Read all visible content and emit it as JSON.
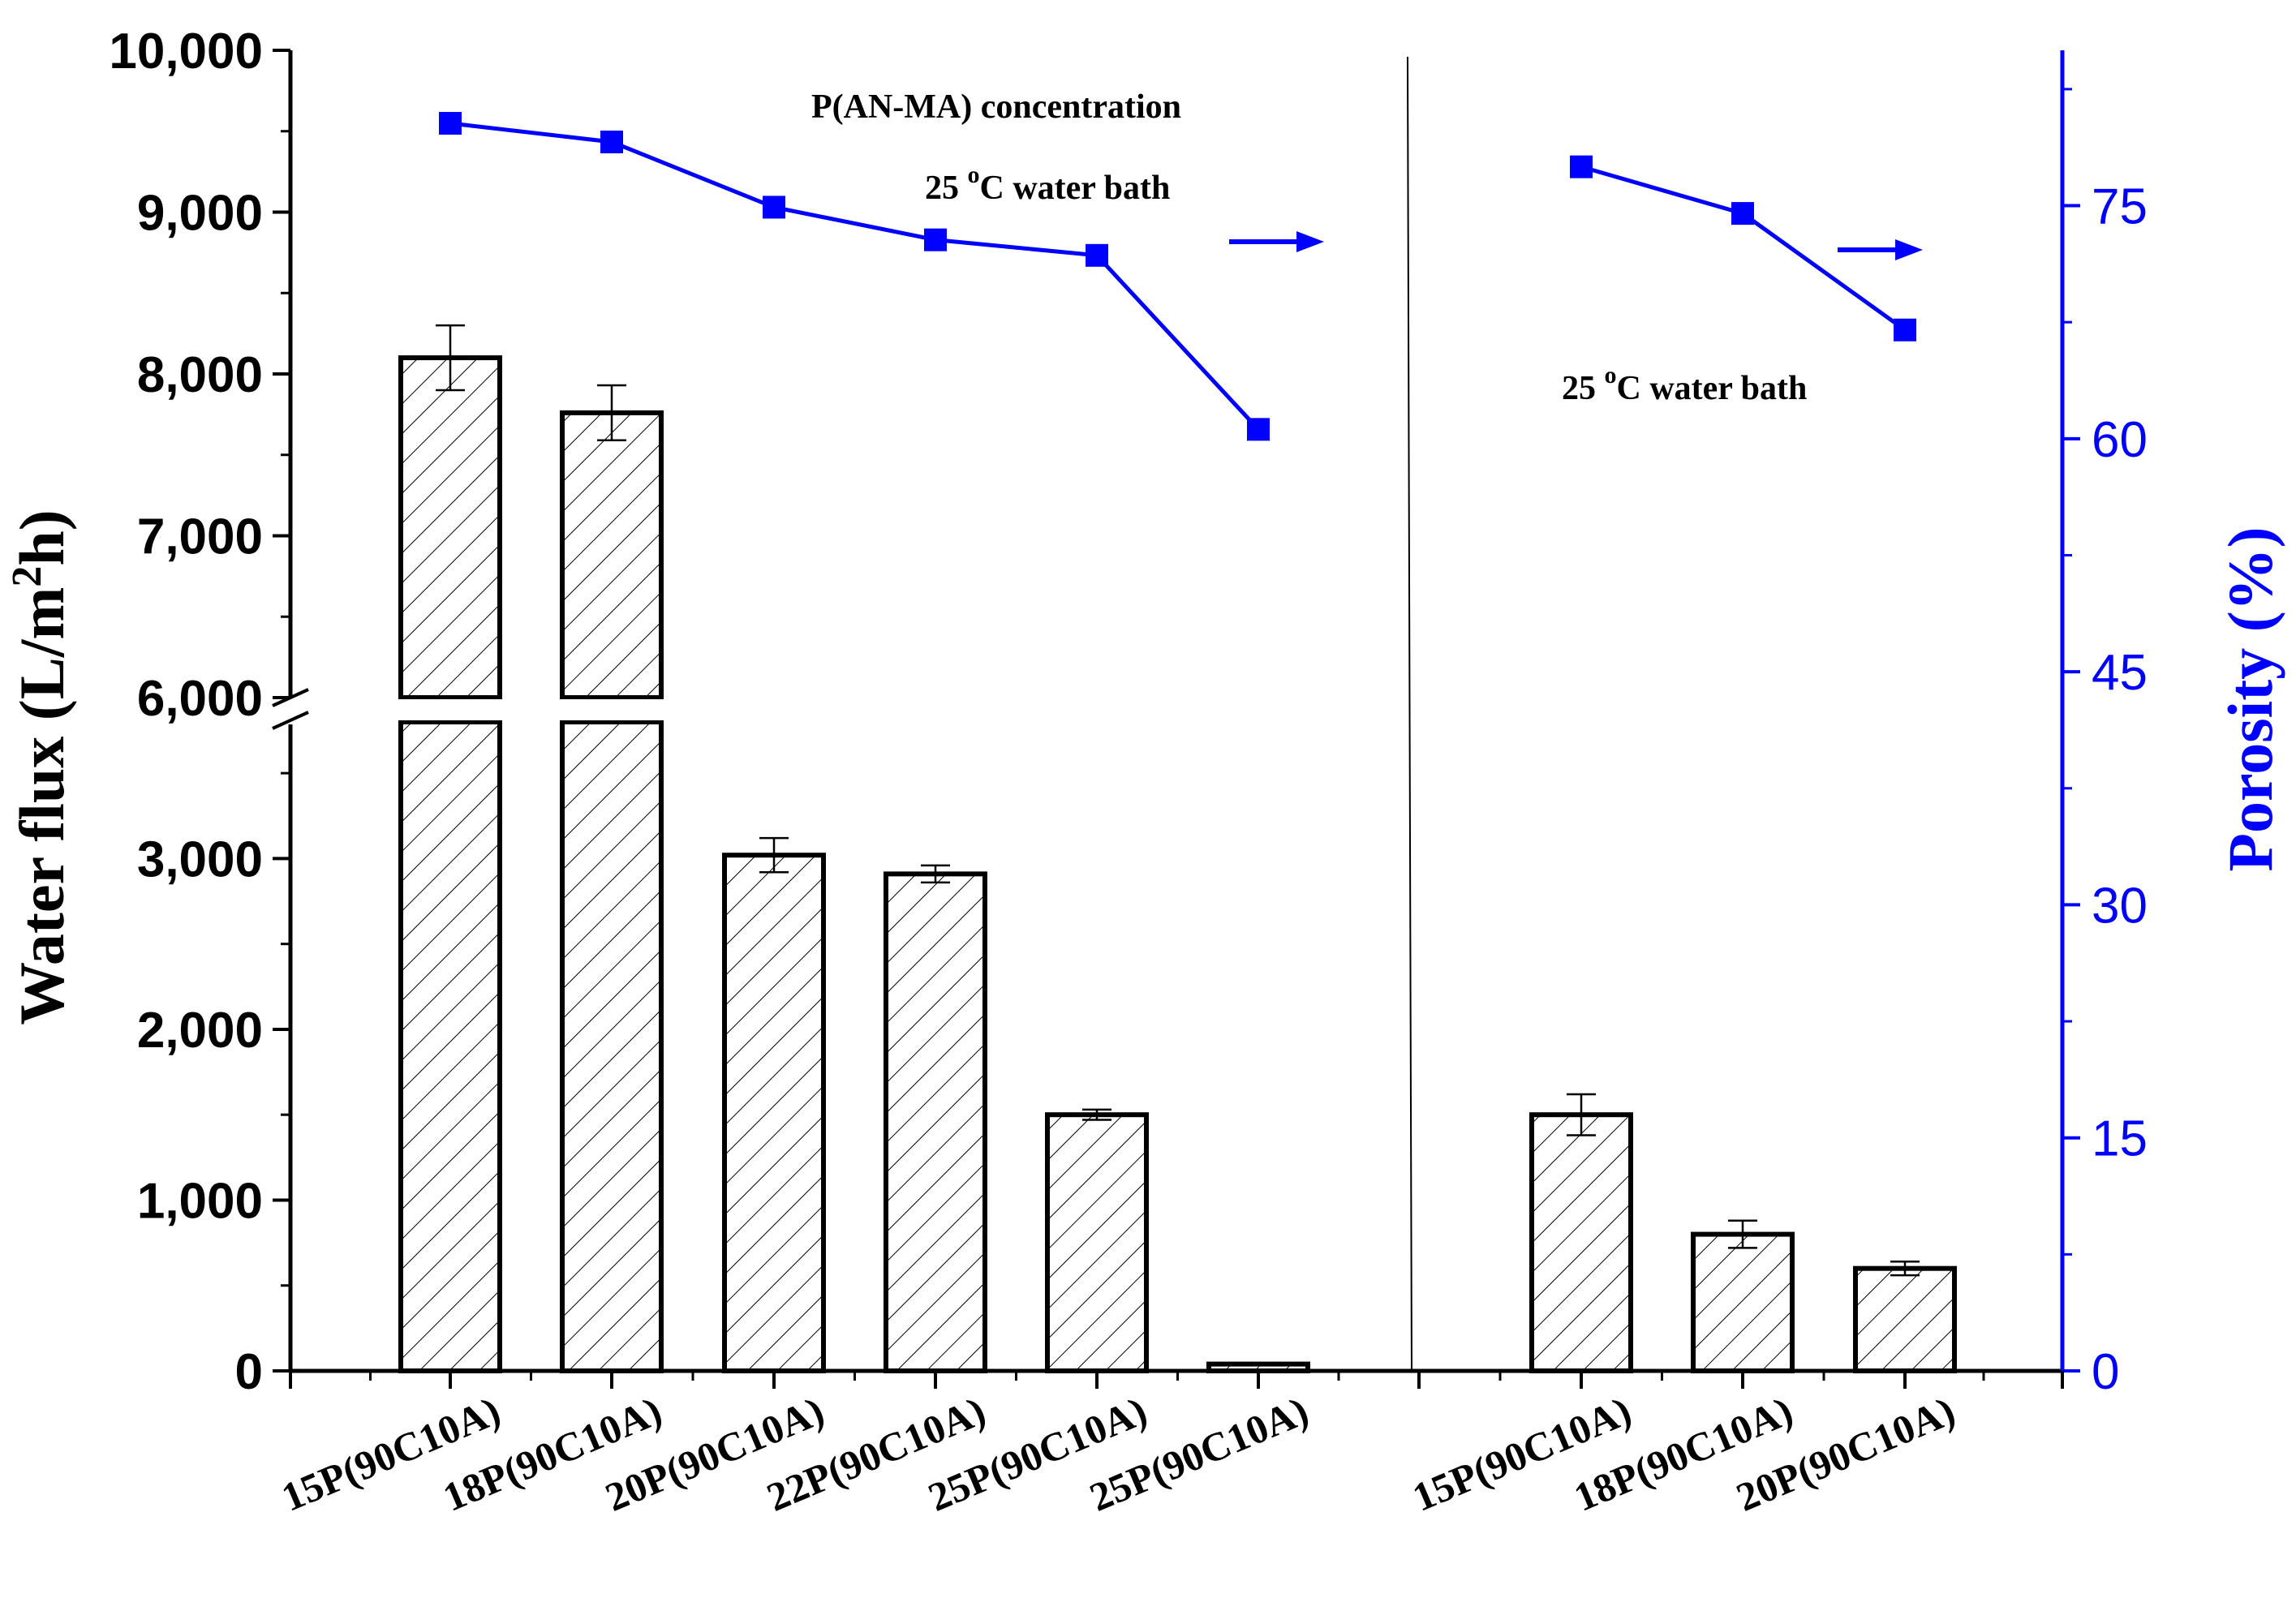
{
  "chart_data": {
    "type": "bar",
    "title": "",
    "xlabel": "",
    "categories": [
      "15P(90C10A)",
      "18P(90C10A)",
      "20P(90C10A)",
      "22P(90C10A)",
      "25P(90C10A)",
      "25P(90C10A)",
      "15P(90C10A)",
      "18P(90C10A)",
      "20P(90C10A)"
    ],
    "groups": [
      {
        "name": "P(AN-MA) concentration, 25 °C water bath",
        "category_indices": [
          0,
          1,
          2,
          3,
          4,
          5
        ]
      },
      {
        "name": "25 °C water bath",
        "category_indices": [
          6,
          7,
          8
        ]
      }
    ],
    "left_axis": {
      "label_main": "Water flux (L/m",
      "label_sup": "2",
      "label_end": "h)",
      "lower_range": [
        0,
        3800
      ],
      "upper_range": [
        6000,
        10000
      ],
      "ticks": [
        {
          "value": 0,
          "label": "0"
        },
        {
          "value": 1000,
          "label": "1,000"
        },
        {
          "value": 2000,
          "label": "2,000"
        },
        {
          "value": 3000,
          "label": "3,000"
        },
        {
          "value": 6000,
          "label": "6,000"
        },
        {
          "value": 7000,
          "label": "7,000"
        },
        {
          "value": 8000,
          "label": "8,000"
        },
        {
          "value": 9000,
          "label": "9,000"
        },
        {
          "value": 10000,
          "label": "10,000"
        }
      ]
    },
    "right_axis": {
      "label": "Porosity (%)",
      "range": [
        0,
        85
      ],
      "ticks": [
        {
          "value": 0,
          "label": "0"
        },
        {
          "value": 15,
          "label": "15"
        },
        {
          "value": 30,
          "label": "30"
        },
        {
          "value": 45,
          "label": "45"
        },
        {
          "value": 60,
          "label": "60"
        },
        {
          "value": 75,
          "label": "75"
        }
      ]
    },
    "series": [
      {
        "name": "Water flux",
        "type": "bar",
        "axis": "left",
        "pattern": "hatched",
        "values": [
          8100,
          7760,
          3020,
          2910,
          1500,
          40,
          1500,
          800,
          600
        ],
        "errors": [
          200,
          170,
          100,
          50,
          30,
          0,
          120,
          80,
          40
        ]
      },
      {
        "name": "Porosity",
        "type": "line",
        "axis": "right",
        "color": "#0000ff",
        "segments": [
          [
            0,
            1,
            2,
            3,
            4,
            5
          ],
          [
            6,
            7,
            8
          ]
        ],
        "values": [
          80.3,
          79.1,
          74.9,
          72.8,
          71.8,
          60.6,
          77.5,
          74.5,
          67.0
        ]
      }
    ],
    "annotations": [
      {
        "id": "concentration",
        "text": "P(AN-MA) concentration"
      },
      {
        "id": "bath1",
        "text_pre": "25 ",
        "text_sup": "o",
        "text_post": "C water bath"
      },
      {
        "id": "bath2",
        "text_pre": "25 ",
        "text_sup": "o",
        "text_post": "C water bath"
      }
    ],
    "colors": {
      "bar_stroke": "#000000",
      "porosity": "#0000ff",
      "right_axis": "#0000ff"
    }
  }
}
